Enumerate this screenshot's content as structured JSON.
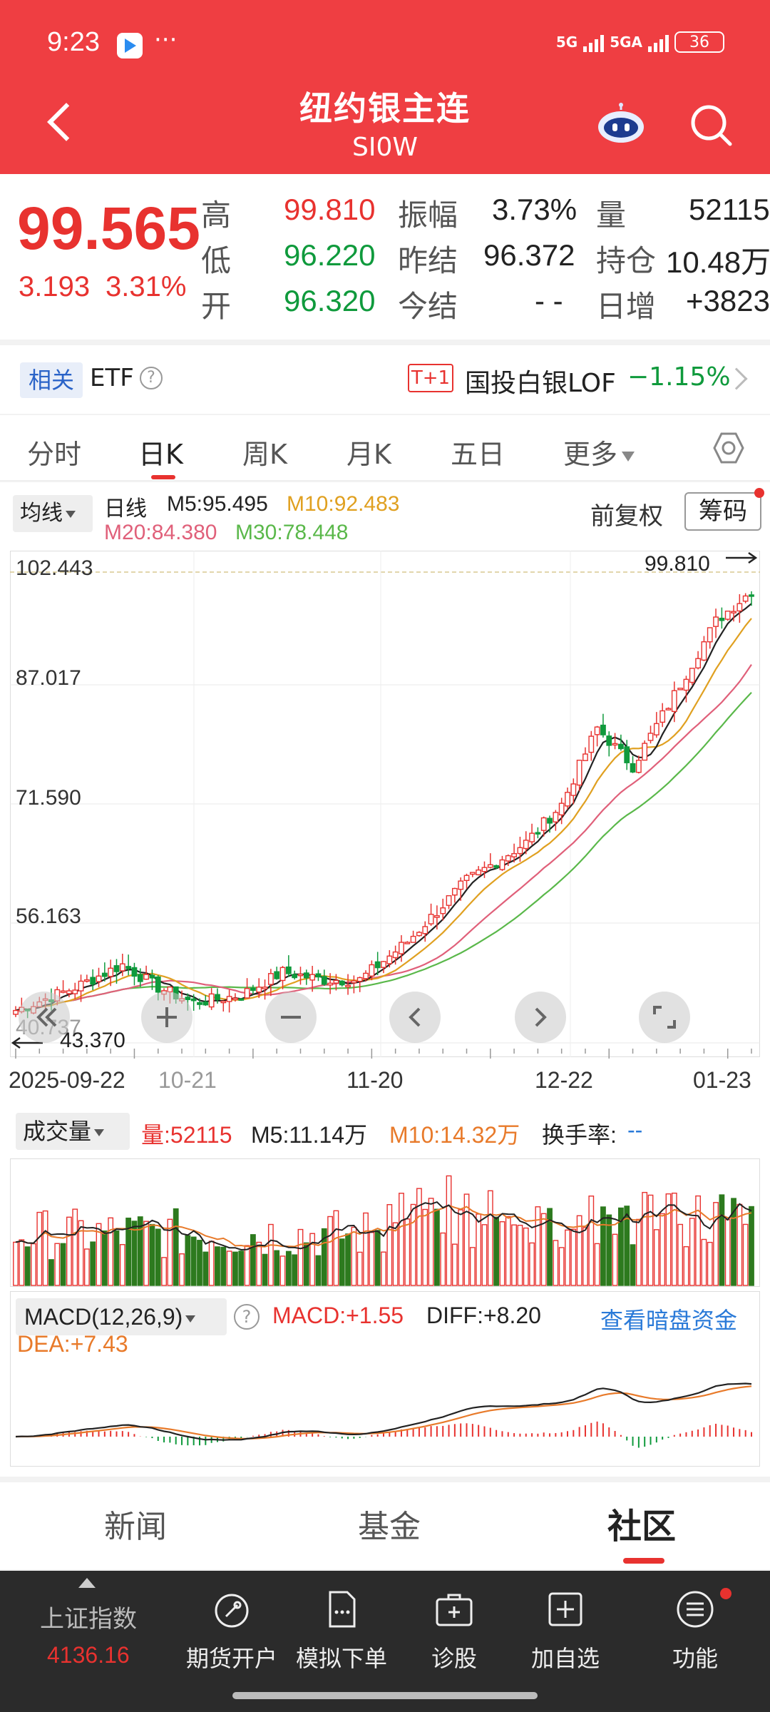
{
  "status_bar": {
    "time": "9:23",
    "dots": "···",
    "net1": "5G",
    "net2": "5GA",
    "battery": "36"
  },
  "header": {
    "title": "纽约银主连",
    "subtitle": "SI0W"
  },
  "quote": {
    "last": "99.565",
    "change": "3.193",
    "change_pct": "3.31%",
    "high_label": "高",
    "high": "99.810",
    "low_label": "低",
    "low": "96.220",
    "open_label": "开",
    "open": "96.320",
    "amp_label": "振幅",
    "amp": "3.73%",
    "prev_label": "昨结",
    "prev": "96.372",
    "today_label": "今结",
    "today": "- -",
    "vol_label": "量",
    "vol": "52115",
    "oi_label": "持仓",
    "oi": "10.48万",
    "daily_label": "日增",
    "daily": "+3823"
  },
  "etf": {
    "tag": "相关",
    "label": "ETF",
    "info": "?",
    "badge": "T+1",
    "fund_name": "国投白银LOF",
    "fund_change": "−1.15%"
  },
  "tabs": [
    "分时",
    "日K",
    "周K",
    "月K",
    "五日",
    "更多"
  ],
  "chart_toolbar": {
    "ma_select": "均线",
    "period": "日线",
    "m5": "M5:95.495",
    "m10": "M10:92.483",
    "m20": "M20:84.380",
    "m30": "M30:78.448",
    "adjust": "前复权",
    "chips": "筹码"
  },
  "kline": {
    "y_labels": [
      "102.443",
      "87.017",
      "71.590",
      "56.163",
      "40.737"
    ],
    "high_marker": "99.810",
    "low_marker": "43.370",
    "x_labels": [
      "2025-09-22",
      "10-21",
      "11-20",
      "12-22",
      "01-23"
    ]
  },
  "volume": {
    "select": "成交量",
    "vol": "量:52115",
    "m5": "M5:11.14万",
    "m10": "M10:14.32万",
    "turnover_label": "换手率:",
    "turnover": "--"
  },
  "macd": {
    "select": "MACD(12,26,9)",
    "help": "?",
    "macd": "MACD:+1.55",
    "diff": "DIFF:+8.20",
    "link": "查看暗盘资金",
    "dea": "DEA:+7.43"
  },
  "news_tabs": [
    "新闻",
    "基金",
    "社区"
  ],
  "bottom": {
    "index_name": "上证指数",
    "index_value": "4136.16",
    "items": [
      "期货开户",
      "模拟下单",
      "诊股",
      "加自选",
      "功能"
    ]
  },
  "colors": {
    "brand_red": "#ef3e42",
    "up": "#e8322f",
    "down": "#0f9a3c",
    "m10": "#e0a020",
    "m20": "#e0607a",
    "m30": "#5ab84a",
    "link_blue": "#2a7ad8"
  },
  "icons": [
    "back-arrow-icon",
    "robot-icon",
    "search-icon",
    "settings-icon",
    "zoom-out-icon",
    "zoom-in-icon",
    "minus-icon",
    "chevron-left-icon",
    "chevron-right-icon",
    "fullscreen-icon"
  ]
}
